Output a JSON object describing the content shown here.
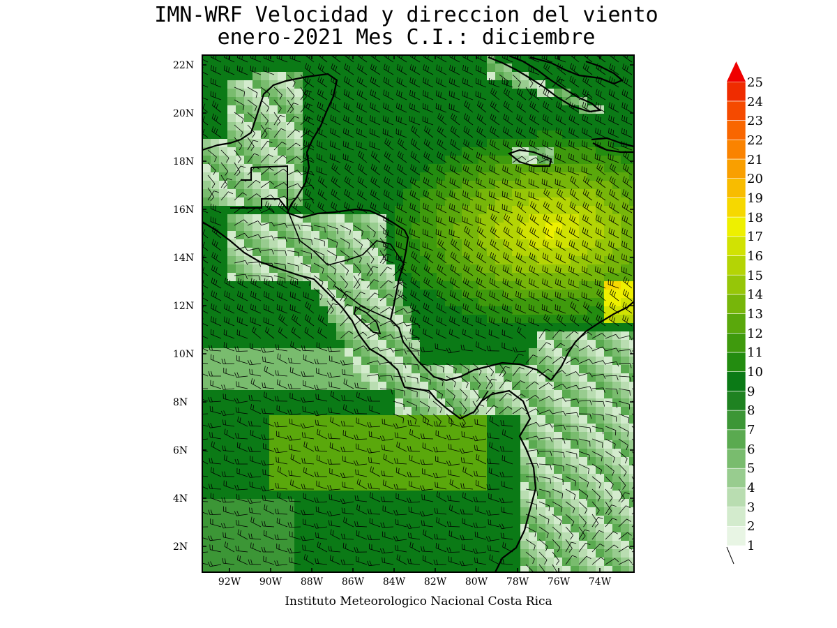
{
  "title": {
    "line1": "IMN-WRF Velocidad y direccion del viento",
    "line2": "enero-2021 Mes C.I.: diciembre"
  },
  "credit": "Instituto Meteorologico Nacional Costa Rica",
  "map": {
    "lat_labels": [
      "22N",
      "20N",
      "18N",
      "16N",
      "14N",
      "12N",
      "10N",
      "8N",
      "6N",
      "4N",
      "2N"
    ],
    "lon_labels": [
      "92W",
      "90W",
      "88W",
      "86W",
      "84W",
      "82W",
      "80W",
      "78W",
      "76W",
      "74W"
    ],
    "lat_range": [
      1,
      22.4
    ],
    "lon_range": [
      -93.5,
      -72.5
    ]
  },
  "colorbar": {
    "labels": [
      "25",
      "24",
      "23",
      "22",
      "21",
      "20",
      "19",
      "18",
      "17",
      "16",
      "15",
      "14",
      "13",
      "12",
      "11",
      "10",
      "9",
      "8",
      "7",
      "6",
      "5",
      "4",
      "3",
      "2",
      "1"
    ],
    "colors": {
      "1": "#e8f5e4",
      "2": "#d3ebcd",
      "3": "#b9ddb1",
      "4": "#98cc8f",
      "5": "#79bc6e",
      "6": "#5aaa50",
      "7": "#3c9636",
      "8": "#1f8221",
      "9": "#0b7a16",
      "10": "#238c10",
      "11": "#3f9a0d",
      "12": "#5aa80c",
      "13": "#77b60a",
      "14": "#96c608",
      "15": "#b4d405",
      "16": "#d1e203",
      "17": "#eef000",
      "18": "#f6d800",
      "19": "#f8bc00",
      "20": "#f99f00",
      "21": "#fa8300",
      "22": "#f96600",
      "23": "#f54a00",
      "24": "#ef2c00",
      "25": "#e81400",
      "arrow": "#ef0000"
    }
  }
}
